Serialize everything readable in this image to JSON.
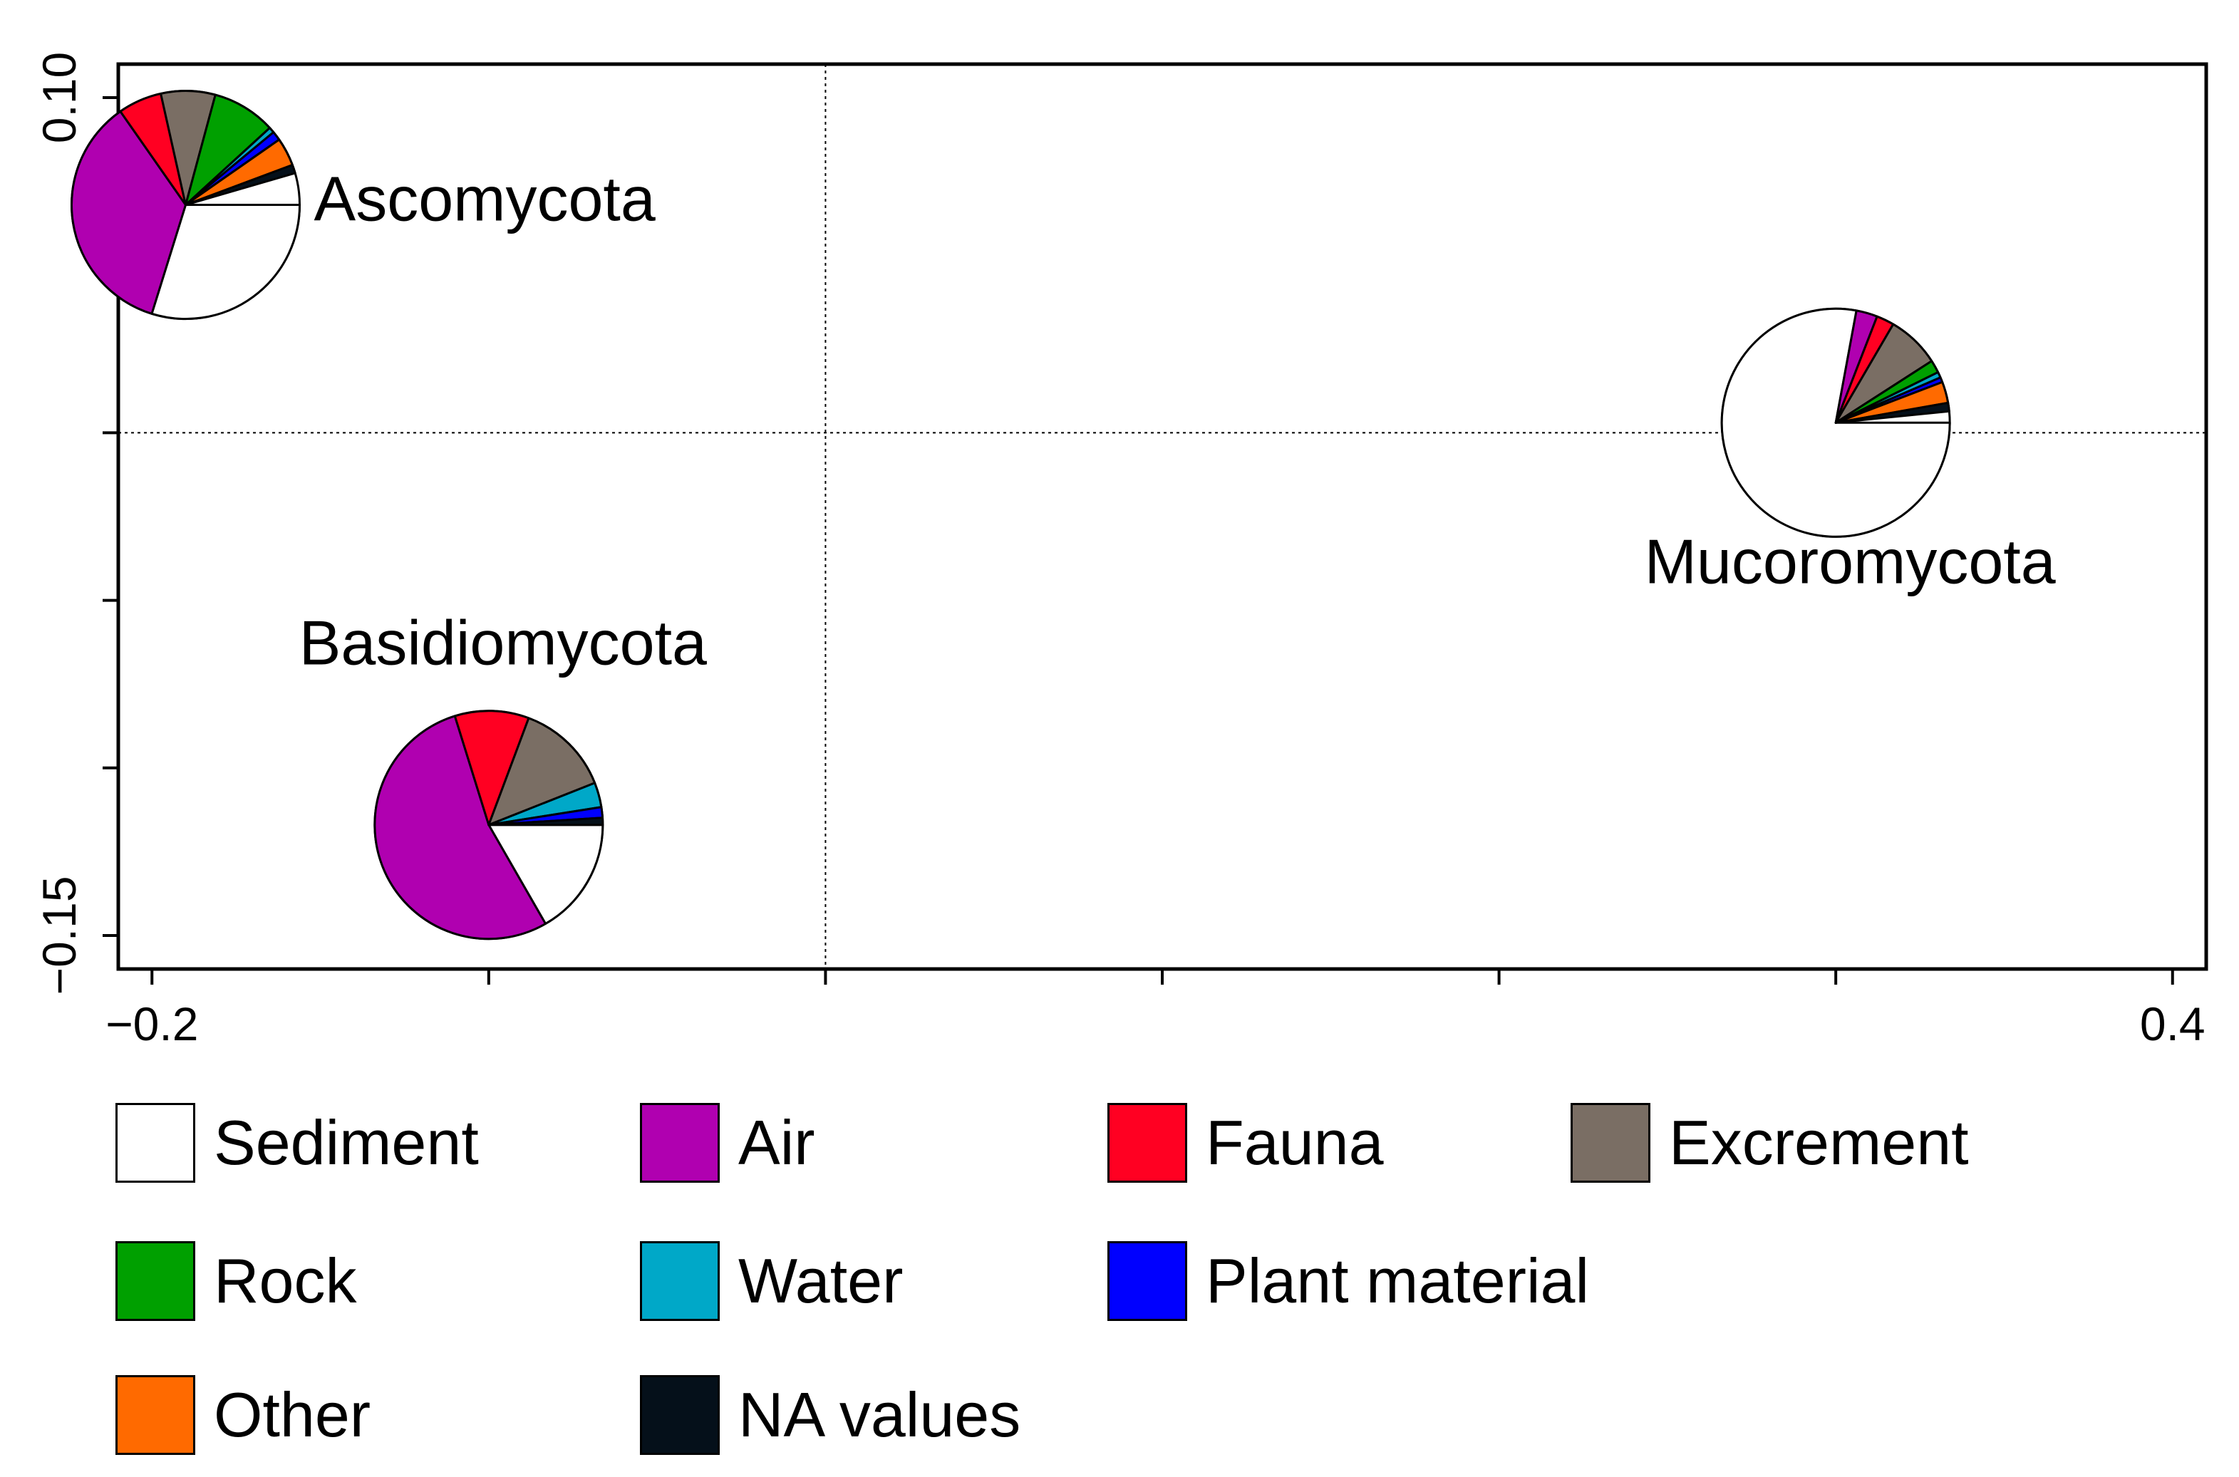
{
  "chart_data": {
    "type": "scatter",
    "marker": "pie",
    "xlim": [
      -0.21,
      0.41
    ],
    "ylim": [
      -0.16,
      0.11
    ],
    "x_ticks": [
      -0.2,
      -0.1,
      0.0,
      0.1,
      0.2,
      0.3,
      0.4
    ],
    "x_tick_labels": [
      "−0.2",
      "",
      "",
      "",
      "",
      "",
      "0.4"
    ],
    "y_ticks": [
      0.1,
      0.05,
      0.0,
      -0.05,
      -0.1,
      -0.15
    ],
    "y_tick_labels": [
      "0.10",
      "",
      "",
      "",
      "",
      "−0.15"
    ],
    "ref_lines": {
      "x": 0.0,
      "y": 0.0
    },
    "categories": [
      {
        "name": "Sediment",
        "color": "#ffffff"
      },
      {
        "name": "Air",
        "color": "#b000b0"
      },
      {
        "name": "Fauna",
        "color": "#ff0022"
      },
      {
        "name": "Excrement",
        "color": "#7a6e64"
      },
      {
        "name": "Rock",
        "color": "#00a000"
      },
      {
        "name": "Water",
        "color": "#00a8c8"
      },
      {
        "name": "Plant material",
        "color": "#0000ff"
      },
      {
        "name": "Other",
        "color": "#ff6a00"
      },
      {
        "name": "NA values",
        "color": "#05101a"
      }
    ],
    "points": [
      {
        "label": "Ascomycota",
        "x": -0.19,
        "y": 0.068,
        "composition": {
          "Sediment": 0.298,
          "Air": 0.355,
          "Fauna": 0.062,
          "Excrement": 0.077,
          "Rock": 0.09,
          "Water": 0.008,
          "Plant material": 0.013,
          "Other": 0.04,
          "NA values": 0.012
        }
      },
      {
        "label": "Basidiomycota",
        "x": -0.1,
        "y": -0.117,
        "composition": {
          "Sediment": 0.167,
          "Air": 0.535,
          "Fauna": 0.105,
          "Excrement": 0.133,
          "Rock": 0.0,
          "Water": 0.035,
          "Plant material": 0.015,
          "Other": 0.0,
          "NA values": 0.01
        }
      },
      {
        "label": "Mucoromycota",
        "x": 0.3,
        "y": 0.003,
        "composition": {
          "Sediment": 0.779,
          "Air": 0.03,
          "Fauna": 0.025,
          "Excrement": 0.075,
          "Rock": 0.018,
          "Water": 0.008,
          "Plant material": 0.007,
          "Other": 0.03,
          "NA values": 0.012
        }
      }
    ],
    "legend": {
      "placement": "bottom",
      "entries": [
        {
          "name": "Sediment",
          "color": "#ffffff"
        },
        {
          "name": "Air",
          "color": "#b000b0"
        },
        {
          "name": "Fauna",
          "color": "#ff0022"
        },
        {
          "name": "Excrement",
          "color": "#7a6e64"
        },
        {
          "name": "Rock",
          "color": "#00a000"
        },
        {
          "name": "Water",
          "color": "#00a8c8"
        },
        {
          "name": "Plant material",
          "color": "#0000ff"
        },
        {
          "name": "Other",
          "color": "#ff6a00"
        },
        {
          "name": "NA values",
          "color": "#05101a"
        }
      ]
    }
  }
}
